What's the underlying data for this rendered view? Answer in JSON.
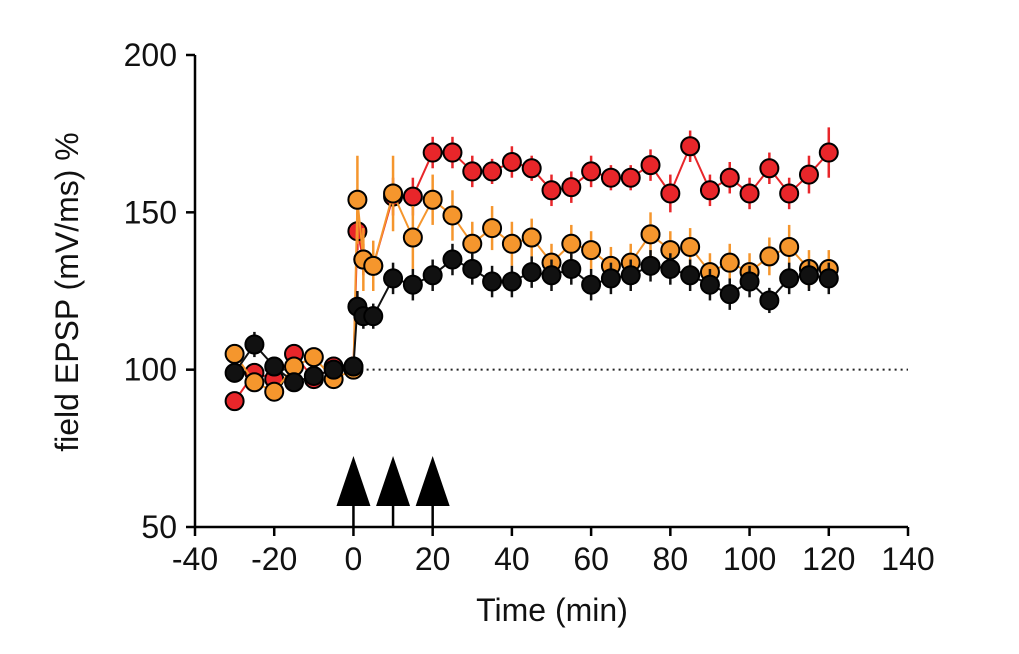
{
  "chart_data": {
    "type": "scatter",
    "title": "",
    "xlabel": "Time (min)",
    "ylabel": "field EPSP (mV/ms) %",
    "xlim": [
      -40,
      140
    ],
    "ylim": [
      50,
      200
    ],
    "xticks": [
      -40,
      -20,
      0,
      20,
      40,
      60,
      80,
      100,
      120,
      140
    ],
    "yticks": [
      50,
      100,
      150,
      200
    ],
    "xtick_labels": [
      "-40",
      "-20",
      "0",
      "20",
      "40",
      "60",
      "80",
      "100",
      "120",
      "140"
    ],
    "ytick_labels": [
      "50",
      "100",
      "150",
      "200"
    ],
    "baseline": {
      "y": 100,
      "style": "dotted"
    },
    "stimulation_markers": [
      0,
      10,
      20
    ],
    "grid": false,
    "legend": "none",
    "series": [
      {
        "color": "#e8262a",
        "x": [
          -30,
          -25,
          -20,
          -15,
          -10,
          -5,
          0,
          1,
          2.5,
          5,
          10,
          15,
          20,
          25,
          30,
          35,
          40,
          45,
          50,
          55,
          60,
          65,
          70,
          75,
          80,
          85,
          90,
          95,
          100,
          105,
          110,
          115,
          120
        ],
        "y": [
          90,
          99,
          97,
          105,
          97,
          101,
          101,
          144,
          135,
          133,
          155,
          155,
          169,
          169,
          163,
          163,
          166,
          164,
          157,
          158,
          163,
          161,
          161,
          165,
          156,
          171,
          157,
          161,
          156,
          164,
          156,
          162,
          169
        ],
        "err": [
          2,
          3,
          2,
          2,
          2,
          2,
          2,
          6,
          5,
          4,
          6,
          6,
          5,
          5,
          5,
          4,
          5,
          4,
          5,
          5,
          5,
          4,
          4,
          5,
          6,
          5,
          5,
          5,
          5,
          5,
          5,
          6,
          8
        ]
      },
      {
        "color": "#f5962d",
        "x": [
          -30,
          -25,
          -20,
          -15,
          -10,
          -5,
          0,
          1,
          2.5,
          5,
          10,
          15,
          20,
          25,
          30,
          35,
          40,
          45,
          50,
          55,
          60,
          65,
          70,
          75,
          80,
          85,
          90,
          95,
          100,
          105,
          110,
          115,
          120
        ],
        "y": [
          105,
          96,
          93,
          101,
          104,
          97,
          100,
          154,
          135,
          133,
          156,
          142,
          154,
          149,
          140,
          145,
          140,
          142,
          134,
          140,
          138,
          133,
          134,
          143,
          138,
          139,
          131,
          134,
          131,
          136,
          139,
          132,
          132
        ],
        "err": [
          3,
          3,
          2,
          3,
          3,
          3,
          3,
          14,
          10,
          8,
          12,
          10,
          8,
          8,
          7,
          7,
          7,
          6,
          6,
          6,
          6,
          6,
          6,
          7,
          6,
          6,
          6,
          6,
          6,
          6,
          7,
          6,
          6
        ]
      },
      {
        "color": "#111111",
        "x": [
          -30,
          -25,
          -20,
          -15,
          -10,
          -5,
          0,
          1,
          2.5,
          5,
          10,
          15,
          20,
          25,
          30,
          35,
          40,
          45,
          50,
          55,
          60,
          65,
          70,
          75,
          80,
          85,
          90,
          95,
          100,
          105,
          110,
          115,
          120
        ],
        "y": [
          99,
          108,
          101,
          96,
          98,
          100,
          101,
          120,
          117,
          117,
          129,
          127,
          130,
          135,
          132,
          128,
          128,
          131,
          130,
          132,
          127,
          129,
          130,
          133,
          132,
          130,
          127,
          124,
          128,
          122,
          129,
          130,
          129
        ],
        "err": [
          3,
          4,
          3,
          3,
          3,
          3,
          3,
          5,
          4,
          4,
          5,
          5,
          5,
          5,
          5,
          5,
          5,
          5,
          5,
          5,
          5,
          5,
          5,
          5,
          5,
          5,
          5,
          5,
          5,
          4,
          5,
          5,
          5
        ]
      }
    ]
  }
}
